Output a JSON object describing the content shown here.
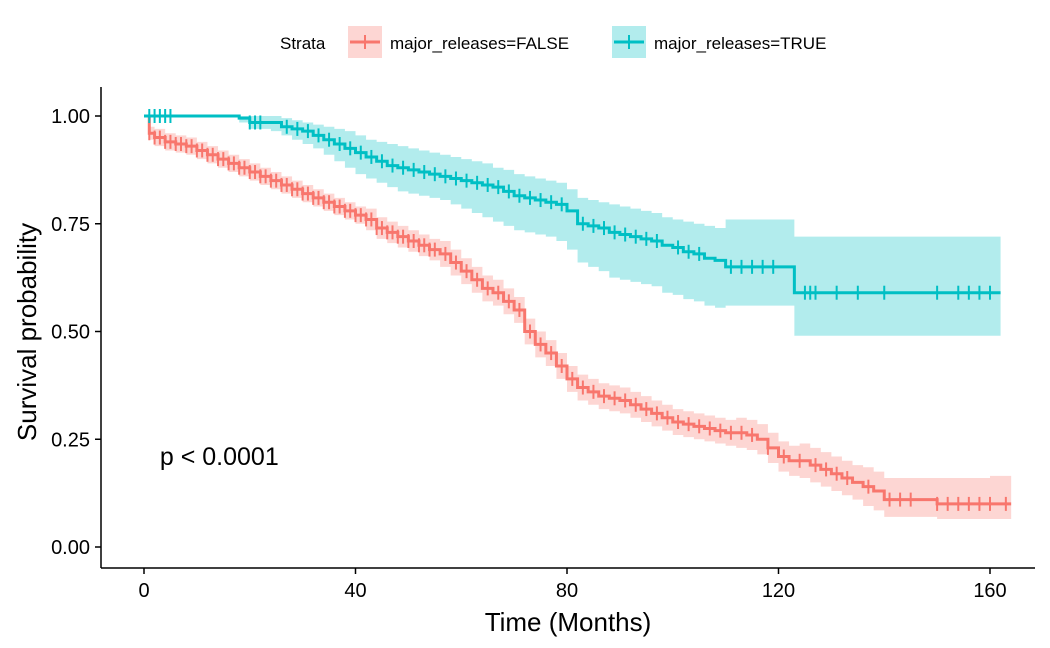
{
  "chart_data": {
    "type": "line",
    "subtype": "kaplan-meier survival curve with confidence bands",
    "xlabel": "Time (Months)",
    "ylabel": "Survival probability",
    "xlim": [
      -9,
      165
    ],
    "ylim": [
      -0.05,
      1.05
    ],
    "x_ticks": [
      0,
      40,
      80,
      120,
      160
    ],
    "x_tick_labels": [
      "0",
      "40",
      "80",
      "120",
      "160"
    ],
    "y_ticks": [
      0,
      0.25,
      0.5,
      0.75,
      1.0
    ],
    "y_tick_labels": [
      "0.00",
      "0.25",
      "0.50",
      "0.75",
      "1.00"
    ],
    "grid": false,
    "legend_title": "Strata",
    "legend_position": "top",
    "annotation": {
      "text": "p < 0.0001",
      "x": 3,
      "y": 0.19
    },
    "series": [
      {
        "name": "major_releases=FALSE",
        "color": "#F8766D",
        "band_color": "#F8766D",
        "times": [
          0,
          1,
          2,
          4,
          6,
          8,
          10,
          12,
          14,
          16,
          18,
          20,
          22,
          24,
          26,
          28,
          30,
          32,
          34,
          36,
          38,
          40,
          42,
          44,
          46,
          48,
          50,
          52,
          54,
          56,
          58,
          60,
          62,
          64,
          66,
          68,
          70,
          72,
          74,
          76,
          78,
          80,
          82,
          84,
          86,
          88,
          90,
          92,
          94,
          96,
          98,
          100,
          102,
          104,
          106,
          108,
          110,
          112,
          114,
          116,
          118,
          120,
          122,
          124,
          126,
          128,
          130,
          132,
          134,
          136,
          138,
          140,
          150,
          160,
          164
        ],
        "surv": [
          1.0,
          0.96,
          0.95,
          0.94,
          0.935,
          0.93,
          0.92,
          0.91,
          0.9,
          0.89,
          0.88,
          0.87,
          0.86,
          0.85,
          0.84,
          0.83,
          0.82,
          0.81,
          0.8,
          0.79,
          0.78,
          0.77,
          0.76,
          0.74,
          0.73,
          0.72,
          0.71,
          0.7,
          0.69,
          0.68,
          0.66,
          0.64,
          0.62,
          0.6,
          0.59,
          0.57,
          0.55,
          0.5,
          0.47,
          0.45,
          0.42,
          0.39,
          0.37,
          0.36,
          0.35,
          0.345,
          0.34,
          0.33,
          0.32,
          0.31,
          0.3,
          0.29,
          0.285,
          0.28,
          0.275,
          0.27,
          0.265,
          0.265,
          0.26,
          0.25,
          0.23,
          0.21,
          0.2,
          0.2,
          0.19,
          0.18,
          0.17,
          0.16,
          0.15,
          0.14,
          0.13,
          0.11,
          0.1,
          0.1,
          0.1
        ],
        "lower": [
          1.0,
          0.945,
          0.93,
          0.92,
          0.915,
          0.91,
          0.9,
          0.89,
          0.88,
          0.87,
          0.86,
          0.85,
          0.84,
          0.83,
          0.82,
          0.81,
          0.8,
          0.79,
          0.78,
          0.77,
          0.76,
          0.75,
          0.735,
          0.715,
          0.705,
          0.695,
          0.685,
          0.675,
          0.665,
          0.65,
          0.63,
          0.61,
          0.59,
          0.57,
          0.56,
          0.54,
          0.52,
          0.47,
          0.44,
          0.42,
          0.39,
          0.36,
          0.34,
          0.33,
          0.32,
          0.315,
          0.31,
          0.3,
          0.29,
          0.28,
          0.27,
          0.26,
          0.255,
          0.25,
          0.245,
          0.24,
          0.235,
          0.23,
          0.225,
          0.215,
          0.195,
          0.175,
          0.165,
          0.16,
          0.15,
          0.14,
          0.13,
          0.12,
          0.11,
          0.095,
          0.085,
          0.07,
          0.065,
          0.065,
          0.065
        ],
        "upper": [
          1.0,
          0.975,
          0.97,
          0.96,
          0.955,
          0.95,
          0.94,
          0.93,
          0.92,
          0.91,
          0.9,
          0.89,
          0.88,
          0.87,
          0.86,
          0.85,
          0.84,
          0.83,
          0.82,
          0.81,
          0.8,
          0.79,
          0.785,
          0.765,
          0.755,
          0.745,
          0.735,
          0.725,
          0.715,
          0.71,
          0.69,
          0.67,
          0.65,
          0.63,
          0.62,
          0.6,
          0.58,
          0.53,
          0.5,
          0.48,
          0.45,
          0.42,
          0.4,
          0.39,
          0.38,
          0.375,
          0.37,
          0.36,
          0.35,
          0.34,
          0.33,
          0.32,
          0.315,
          0.31,
          0.305,
          0.3,
          0.295,
          0.3,
          0.295,
          0.285,
          0.265,
          0.245,
          0.235,
          0.24,
          0.23,
          0.22,
          0.21,
          0.2,
          0.19,
          0.185,
          0.175,
          0.16,
          0.16,
          0.165,
          0.165
        ],
        "censor_times": [
          1,
          2,
          3,
          4,
          5,
          6,
          7,
          8,
          9,
          10,
          11,
          12,
          13,
          14,
          15,
          16,
          17,
          18,
          19,
          20,
          21,
          22,
          23,
          24,
          25,
          26,
          27,
          28,
          29,
          30,
          31,
          32,
          33,
          34,
          35,
          36,
          37,
          38,
          39,
          40,
          41,
          42,
          43,
          44,
          45,
          46,
          47,
          48,
          49,
          50,
          51,
          52,
          53,
          54,
          55,
          57,
          59,
          61,
          63,
          65,
          67,
          69,
          71,
          73,
          75,
          77,
          79,
          81,
          83,
          85,
          87,
          89,
          91,
          93,
          95,
          97,
          99,
          101,
          103,
          105,
          107,
          109,
          111,
          113,
          115,
          118,
          121,
          124,
          127,
          129,
          131,
          133,
          137,
          141,
          143,
          145,
          150,
          152,
          154,
          156,
          158,
          160,
          163
        ]
      },
      {
        "name": "major_releases=TRUE",
        "color": "#00BFC4",
        "band_color": "#00BFC4",
        "times": [
          0,
          18,
          20,
          24,
          26,
          28,
          30,
          32,
          34,
          36,
          38,
          40,
          42,
          44,
          46,
          48,
          50,
          52,
          54,
          56,
          58,
          60,
          62,
          64,
          66,
          68,
          70,
          72,
          74,
          76,
          78,
          80,
          82,
          84,
          86,
          88,
          90,
          92,
          94,
          96,
          98,
          100,
          102,
          104,
          106,
          108,
          110,
          115,
          120,
          123,
          130,
          140,
          150,
          162
        ],
        "surv": [
          1.0,
          0.995,
          0.985,
          0.985,
          0.975,
          0.97,
          0.965,
          0.955,
          0.945,
          0.935,
          0.925,
          0.915,
          0.905,
          0.895,
          0.885,
          0.88,
          0.875,
          0.87,
          0.865,
          0.86,
          0.855,
          0.85,
          0.845,
          0.84,
          0.835,
          0.825,
          0.815,
          0.81,
          0.805,
          0.8,
          0.795,
          0.78,
          0.75,
          0.745,
          0.74,
          0.73,
          0.725,
          0.72,
          0.715,
          0.71,
          0.7,
          0.695,
          0.685,
          0.68,
          0.67,
          0.665,
          0.65,
          0.65,
          0.65,
          0.59,
          0.59,
          0.59,
          0.59,
          0.59
        ],
        "lower": [
          1.0,
          0.985,
          0.97,
          0.965,
          0.955,
          0.945,
          0.935,
          0.925,
          0.91,
          0.895,
          0.88,
          0.865,
          0.855,
          0.845,
          0.835,
          0.825,
          0.82,
          0.815,
          0.81,
          0.805,
          0.795,
          0.785,
          0.775,
          0.765,
          0.755,
          0.745,
          0.735,
          0.73,
          0.725,
          0.72,
          0.71,
          0.69,
          0.66,
          0.65,
          0.64,
          0.625,
          0.62,
          0.615,
          0.61,
          0.605,
          0.59,
          0.585,
          0.575,
          0.57,
          0.56,
          0.555,
          0.56,
          0.56,
          0.56,
          0.49,
          0.49,
          0.49,
          0.49,
          0.49
        ],
        "upper": [
          1.0,
          1.0,
          1.0,
          1.0,
          0.995,
          0.99,
          0.985,
          0.98,
          0.975,
          0.97,
          0.965,
          0.955,
          0.945,
          0.94,
          0.935,
          0.93,
          0.925,
          0.92,
          0.915,
          0.91,
          0.905,
          0.9,
          0.895,
          0.89,
          0.88,
          0.875,
          0.865,
          0.86,
          0.855,
          0.85,
          0.845,
          0.83,
          0.81,
          0.805,
          0.8,
          0.795,
          0.79,
          0.785,
          0.78,
          0.775,
          0.765,
          0.76,
          0.755,
          0.75,
          0.745,
          0.74,
          0.76,
          0.76,
          0.76,
          0.72,
          0.72,
          0.72,
          0.72,
          0.72
        ],
        "censor_times": [
          1,
          2,
          3,
          4,
          5,
          20,
          21,
          22,
          27,
          29,
          31,
          33,
          35,
          37,
          39,
          41,
          43,
          45,
          47,
          49,
          51,
          53,
          55,
          57,
          59,
          61,
          63,
          65,
          67,
          69,
          71,
          73,
          75,
          77,
          79,
          83,
          85,
          87,
          89,
          91,
          93,
          95,
          97,
          101,
          103,
          105,
          111,
          113,
          115,
          117,
          119,
          125,
          126,
          127,
          131,
          135,
          140,
          150,
          154,
          156,
          158,
          160
        ]
      }
    ]
  }
}
